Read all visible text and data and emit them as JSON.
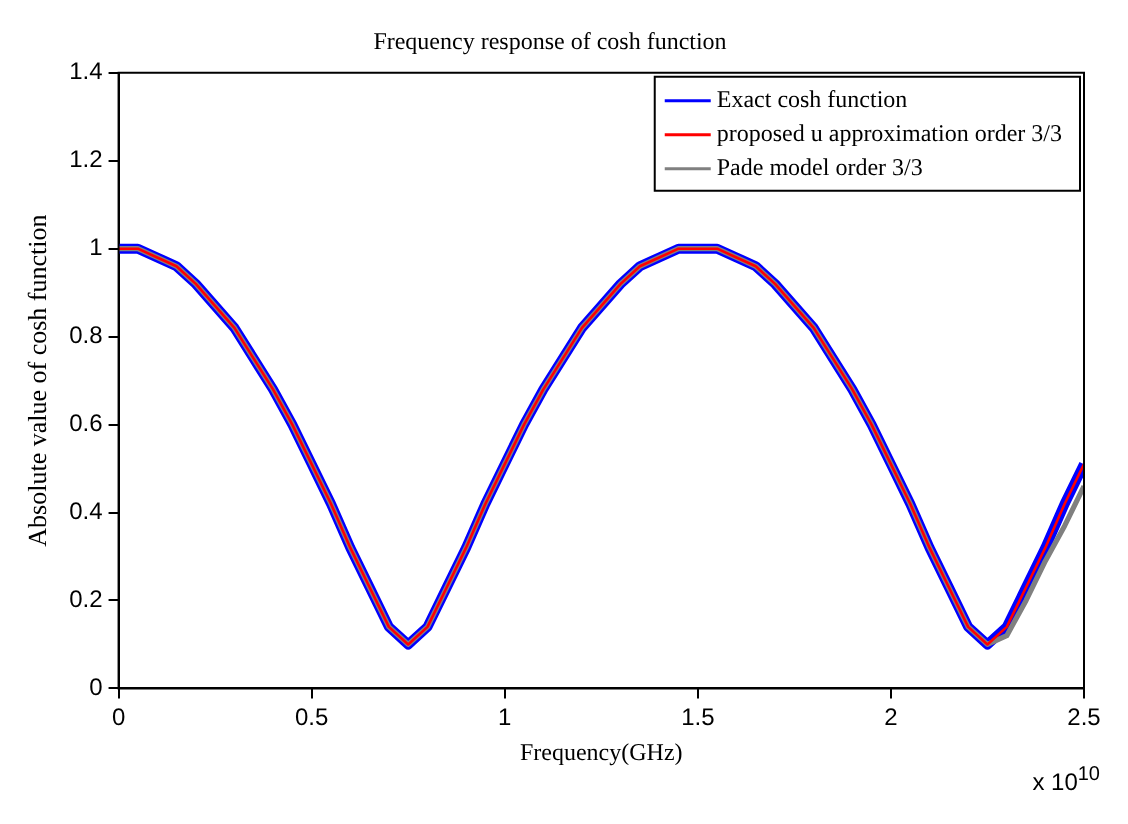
{
  "chart_data": {
    "type": "line",
    "title": "Frequency response of cosh function",
    "xlabel": "Frequency(GHz)",
    "ylabel": "Absolute value of cosh function",
    "annotations": [
      "x 10$^{10}$"
    ],
    "x": [
      0,
      0.05,
      0.1,
      0.15,
      0.2,
      0.25,
      0.3,
      0.35,
      0.4,
      0.45,
      0.5,
      0.55,
      0.6,
      0.65,
      0.7,
      0.75,
      0.8,
      0.85,
      0.9,
      0.95,
      1,
      1.05,
      1.1,
      1.15,
      1.2,
      1.25,
      1.3,
      1.35,
      1.4,
      1.45,
      1.5,
      1.55,
      1.6,
      1.65,
      1.7,
      1.75,
      1.8,
      1.85,
      1.9,
      1.95,
      2,
      2.05,
      2.1,
      2.15,
      2.2,
      2.25,
      2.3,
      2.35,
      2.4,
      2.45,
      2.5
    ],
    "series": [
      {
        "name": "Exact cosh function",
        "color": "#0000ff",
        "values": [
          1.0,
          1.0,
          0.98,
          0.96,
          0.92,
          0.87,
          0.82,
          0.75,
          0.68,
          0.6,
          0.51,
          0.42,
          0.32,
          0.23,
          0.14,
          0.1,
          0.14,
          0.23,
          0.32,
          0.42,
          0.51,
          0.6,
          0.68,
          0.75,
          0.82,
          0.87,
          0.92,
          0.96,
          0.98,
          1.0,
          1.0,
          1.0,
          0.98,
          0.96,
          0.92,
          0.87,
          0.82,
          0.75,
          0.68,
          0.6,
          0.51,
          0.42,
          0.32,
          0.23,
          0.14,
          0.1,
          0.14,
          0.23,
          0.32,
          0.42,
          0.51
        ]
      },
      {
        "name": "proposed u approximation order 3/3",
        "color": "#ff0000",
        "values": [
          1.0,
          1.0,
          0.98,
          0.96,
          0.92,
          0.87,
          0.82,
          0.75,
          0.68,
          0.6,
          0.51,
          0.42,
          0.32,
          0.23,
          0.14,
          0.1,
          0.14,
          0.23,
          0.32,
          0.42,
          0.51,
          0.6,
          0.68,
          0.75,
          0.82,
          0.87,
          0.92,
          0.96,
          0.98,
          1.0,
          1.0,
          1.0,
          0.98,
          0.96,
          0.92,
          0.87,
          0.82,
          0.75,
          0.68,
          0.6,
          0.51,
          0.42,
          0.32,
          0.23,
          0.14,
          0.1,
          0.14,
          0.23,
          0.32,
          0.42,
          0.51
        ]
      },
      {
        "name": "Pade model order 3/3",
        "color": "#808080",
        "values": [
          1.0,
          1.0,
          0.98,
          0.96,
          0.92,
          0.87,
          0.82,
          0.75,
          0.68,
          0.6,
          0.51,
          0.42,
          0.32,
          0.23,
          0.14,
          0.1,
          0.14,
          0.23,
          0.32,
          0.42,
          0.51,
          0.6,
          0.68,
          0.75,
          0.82,
          0.87,
          0.92,
          0.96,
          0.98,
          1.0,
          1.0,
          1.0,
          0.98,
          0.96,
          0.92,
          0.87,
          0.82,
          0.75,
          0.68,
          0.6,
          0.51,
          0.42,
          0.32,
          0.23,
          0.14,
          0.1,
          0.12,
          0.2,
          0.29,
          0.37,
          0.46
        ]
      }
    ],
    "xlim": [
      0,
      2.5
    ],
    "xticks": [
      0,
      0.5,
      1,
      1.5,
      2,
      2.5
    ],
    "ylim": [
      0,
      1.4
    ],
    "yticks": [
      0,
      0.2,
      0.4,
      0.6,
      0.8,
      1,
      1.2,
      1.4
    ],
    "grid": false,
    "legend": "top right",
    "marker": "none",
    "line_style": "solid"
  }
}
